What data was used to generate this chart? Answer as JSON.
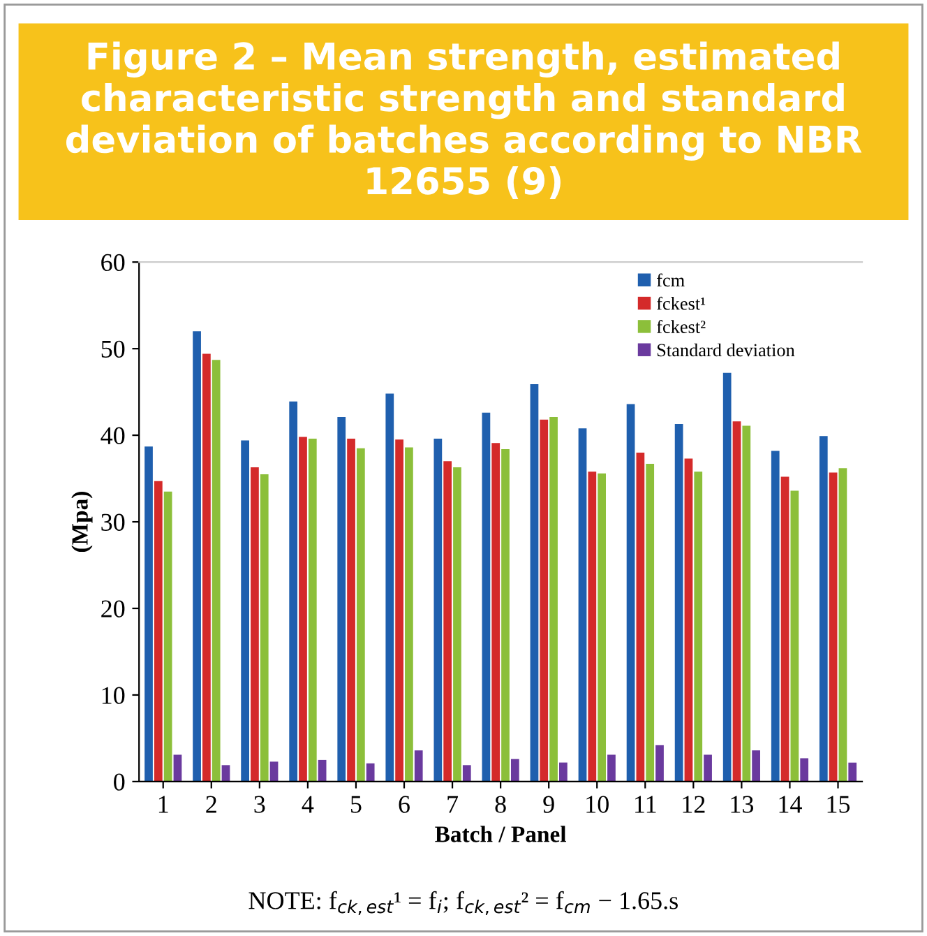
{
  "chart_data": {
    "type": "bar",
    "title": "Figure 2 – Mean strength, estimated characteristic strength and standard deviation of batches according to NBR 12655 (9)",
    "xlabel": "Batch / Panel",
    "ylabel": "(Mpa)",
    "annotations": [
      "NOTE: f$_{ck,est}$¹ = f$_{i}$; f$_{ck,est}$² = f$_{cm}$ − 1.65.s"
    ],
    "categories": [
      "1",
      "2",
      "3",
      "4",
      "5",
      "6",
      "7",
      "8",
      "9",
      "10",
      "11",
      "12",
      "13",
      "14",
      "15"
    ],
    "series": [
      {
        "name": "fcm",
        "color": "#1f5fae",
        "values": [
          38.7,
          52,
          39.4,
          43.9,
          42.1,
          44.8,
          39.6,
          42.6,
          45.9,
          40.8,
          43.6,
          41.3,
          47.2,
          38.2,
          39.9
        ]
      },
      {
        "name": "fckest¹",
        "color": "#d42a2a",
        "values": [
          34.7,
          49.4,
          36.3,
          39.8,
          39.6,
          39.5,
          37.0,
          39.1,
          41.8,
          35.8,
          38.0,
          37.3,
          41.6,
          35.2,
          35.7
        ]
      },
      {
        "name": "fckest²",
        "color": "#8cbf3a",
        "values": [
          33.5,
          48.7,
          35.5,
          39.6,
          38.5,
          38.6,
          36.3,
          38.4,
          42.1,
          35.6,
          36.7,
          35.8,
          41.1,
          33.6,
          36.2
        ]
      },
      {
        "name": "Standard deviation",
        "color": "#6a3a9e",
        "values": [
          3.1,
          1.9,
          2.3,
          2.5,
          2.1,
          3.6,
          1.9,
          2.6,
          2.2,
          3.1,
          4.2,
          3.1,
          3.6,
          2.7,
          2.2
        ]
      }
    ],
    "ylim": [
      0,
      60
    ],
    "yticks": [
      0,
      10,
      20,
      30,
      40,
      50,
      60
    ],
    "grid": false,
    "legend": "top right"
  }
}
